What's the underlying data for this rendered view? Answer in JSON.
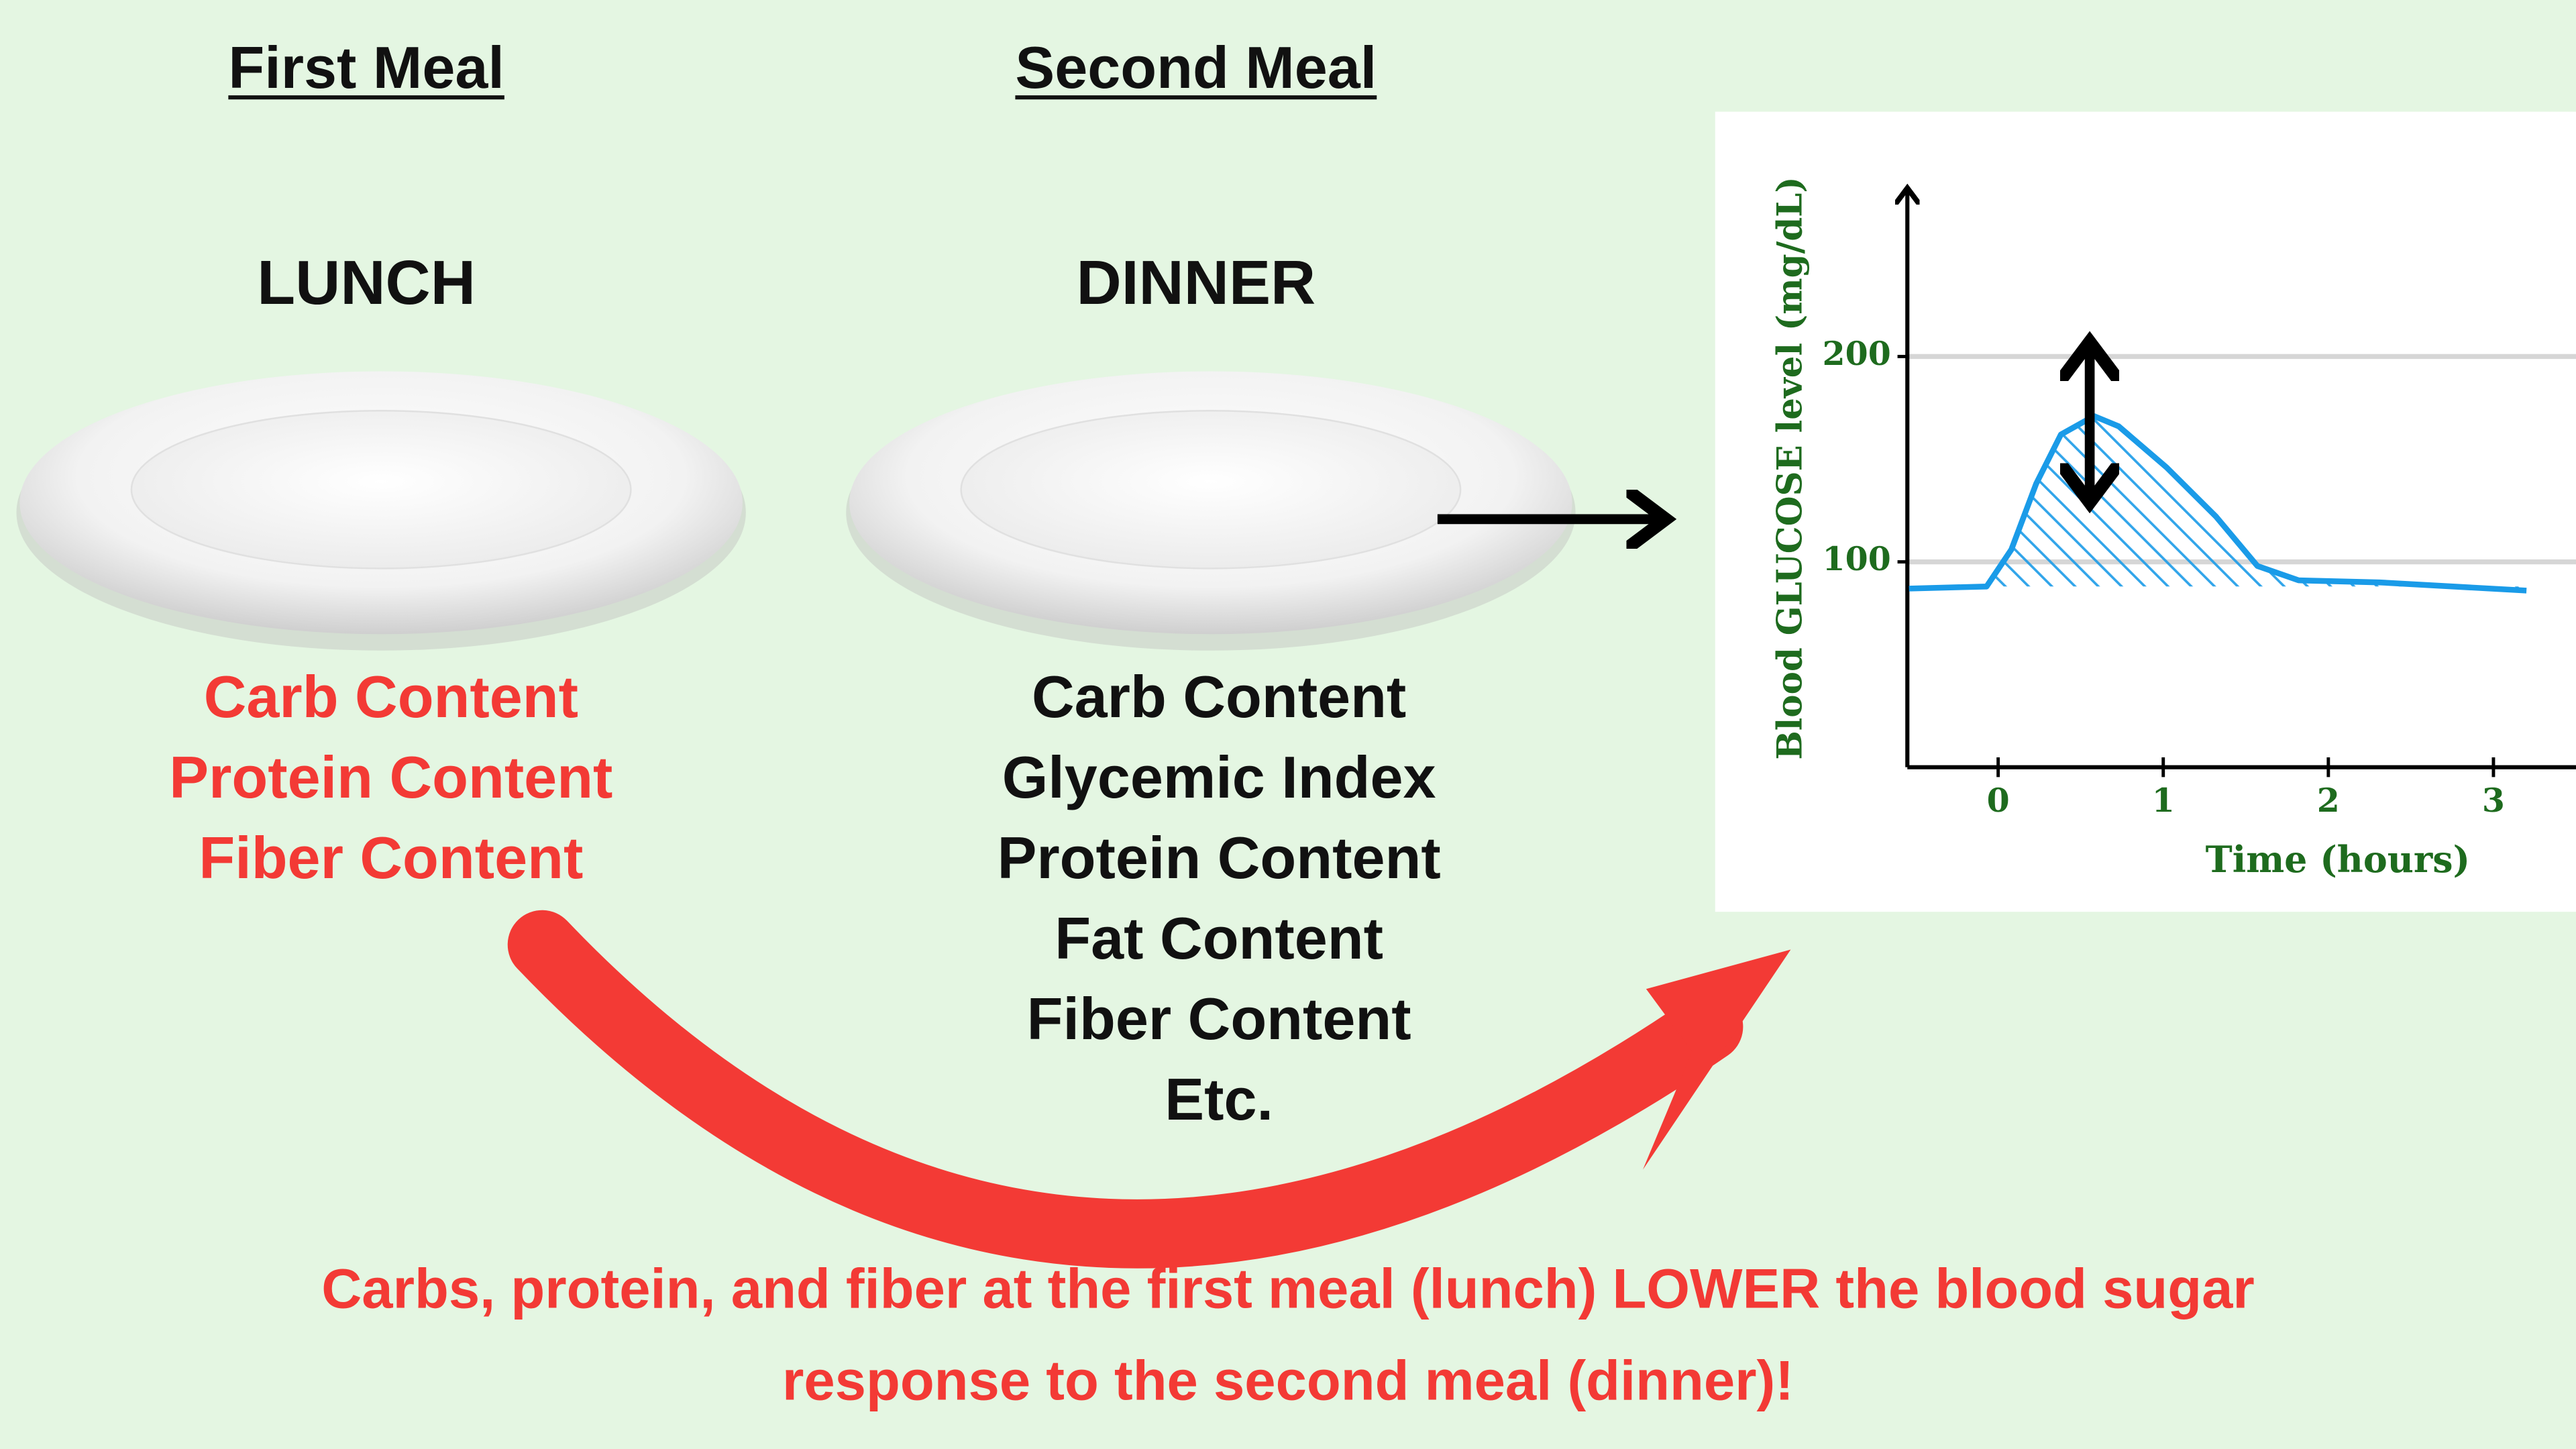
{
  "header": {
    "first_meal": "First Meal",
    "second_meal": "Second Meal",
    "lunch": "LUNCH",
    "dinner": "DINNER"
  },
  "lunch_items": [
    "Carb Content",
    "Protein Content",
    "Fiber Content"
  ],
  "dinner_items": [
    "Carb Content",
    "Glycemic Index",
    "Protein Content",
    "Fat Content",
    "Fiber Content",
    "Etc."
  ],
  "caption_lines": [
    "Carbs, protein, and fiber at the first meal (lunch) LOWER the blood sugar",
    "response to the second meal (dinner)!"
  ],
  "chart": {
    "type": "line",
    "x_label": "Time (hours)",
    "y_label": "Blood GLUCOSE level (mg/dL)",
    "x": [
      -0.54,
      -0.07,
      0.08,
      0.23,
      0.38,
      0.58,
      0.73,
      1.02,
      1.32,
      1.57,
      1.82,
      2.31,
      3.2
    ],
    "values": [
      87,
      88,
      106,
      138,
      162,
      171,
      166,
      146,
      122,
      98,
      91,
      90,
      86
    ],
    "color": "#1a9be8",
    "xlim": [
      -0.55,
      3.5
    ],
    "ylim": [
      0,
      280
    ],
    "xticks": [
      0,
      1,
      2,
      3
    ],
    "yticks": [
      100,
      200
    ],
    "grid": true
  }
}
